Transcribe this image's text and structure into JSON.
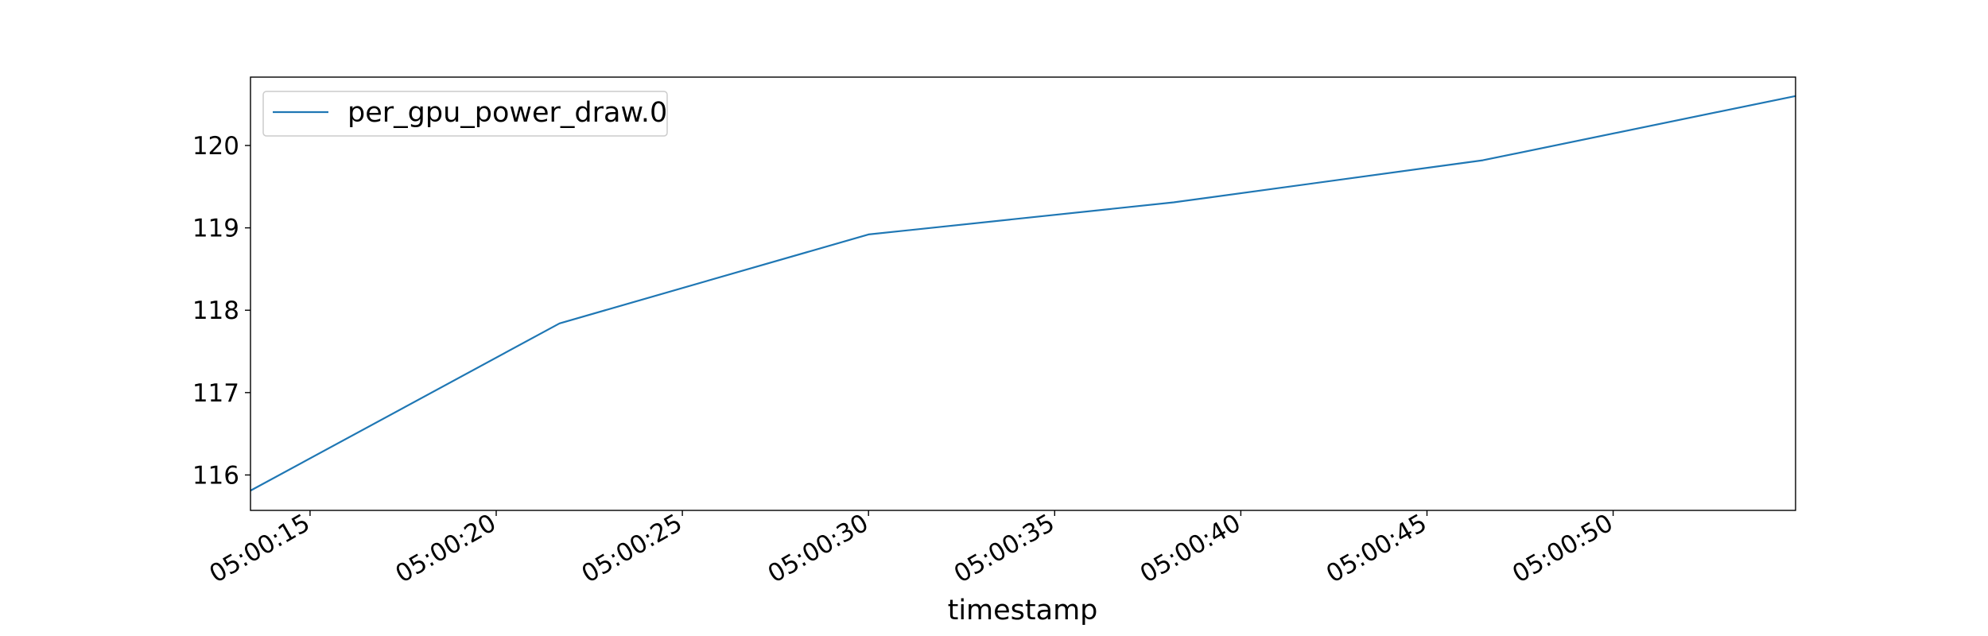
{
  "chart_data": {
    "type": "line",
    "title": "",
    "xlabel": "timestamp",
    "ylabel": "",
    "x_ticks": [
      "05:00:15",
      "05:00:20",
      "05:00:25",
      "05:00:30",
      "05:00:35",
      "05:00:40",
      "05:00:45",
      "05:00:50"
    ],
    "x_tick_seconds": [
      15,
      20,
      25,
      30,
      35,
      40,
      45,
      50
    ],
    "y_ticks": [
      116,
      117,
      118,
      119,
      120
    ],
    "xlim_seconds": [
      13.4,
      54.9
    ],
    "ylim": [
      115.57,
      120.83
    ],
    "grid": false,
    "legend": "upper left",
    "series": [
      {
        "name": "per_gpu_power_draw.0",
        "color": "#1f77b4",
        "x_seconds": [
          13.4,
          21.7,
          30.0,
          38.2,
          46.5,
          54.9
        ],
        "y": [
          115.81,
          117.84,
          118.92,
          119.31,
          119.82,
          120.6
        ]
      }
    ]
  }
}
